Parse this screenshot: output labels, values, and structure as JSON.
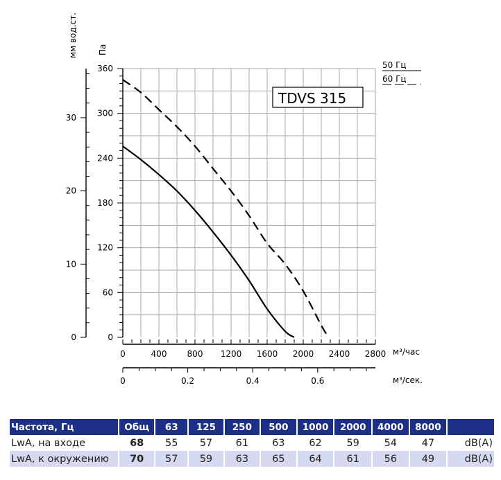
{
  "chart_data": {
    "type": "line",
    "model_label": "TDVS 315",
    "ylabel_left": "мм вод.ст.",
    "ylabel_pa": "Па",
    "x_unit_top": "м³/час",
    "x_unit_bottom": "м³/сек.",
    "x_ticks": [
      "0",
      "400",
      "800",
      "1200",
      "1600",
      "2000",
      "2400",
      "2800"
    ],
    "x_ticks_sec": [
      "0",
      "0.2",
      "0.4",
      "0.6"
    ],
    "y_ticks_pa": [
      "0",
      "60",
      "120",
      "180",
      "240",
      "300",
      "360"
    ],
    "y_ticks_mm": [
      "0",
      "10",
      "20",
      "30"
    ],
    "xlim": [
      0,
      2800
    ],
    "ylim": [
      0,
      360
    ],
    "legend": {
      "freq50": "50 Гц",
      "freq60": "60 Гц"
    },
    "series": [
      {
        "name": "50 Гц",
        "style": "solid",
        "x": [
          0,
          200,
          400,
          600,
          800,
          1000,
          1200,
          1400,
          1600,
          1800,
          1900
        ],
        "y": [
          256,
          238,
          218,
          196,
          170,
          141,
          110,
          76,
          38,
          8,
          0
        ]
      },
      {
        "name": "60 Гц",
        "style": "dashed",
        "x": [
          0,
          200,
          400,
          600,
          800,
          1000,
          1200,
          1400,
          1600,
          1800,
          2000,
          2200,
          2280
        ],
        "y": [
          345,
          328,
          305,
          282,
          256,
          226,
          196,
          163,
          126,
          98,
          62,
          16,
          0
        ]
      }
    ]
  },
  "table": {
    "headers": [
      "Частота, Гц",
      "Общ",
      "63",
      "125",
      "250",
      "500",
      "1000",
      "2000",
      "4000",
      "8000",
      ""
    ],
    "rows": [
      {
        "label": "LwA, на входе",
        "total": "68",
        "values": [
          "55",
          "57",
          "61",
          "63",
          "62",
          "59",
          "54",
          "47"
        ],
        "unit": "dB(A)"
      },
      {
        "label": "LwA, к окружению",
        "total": "70",
        "values": [
          "57",
          "59",
          "63",
          "65",
          "64",
          "61",
          "56",
          "49"
        ],
        "unit": "dB(A)"
      }
    ]
  }
}
